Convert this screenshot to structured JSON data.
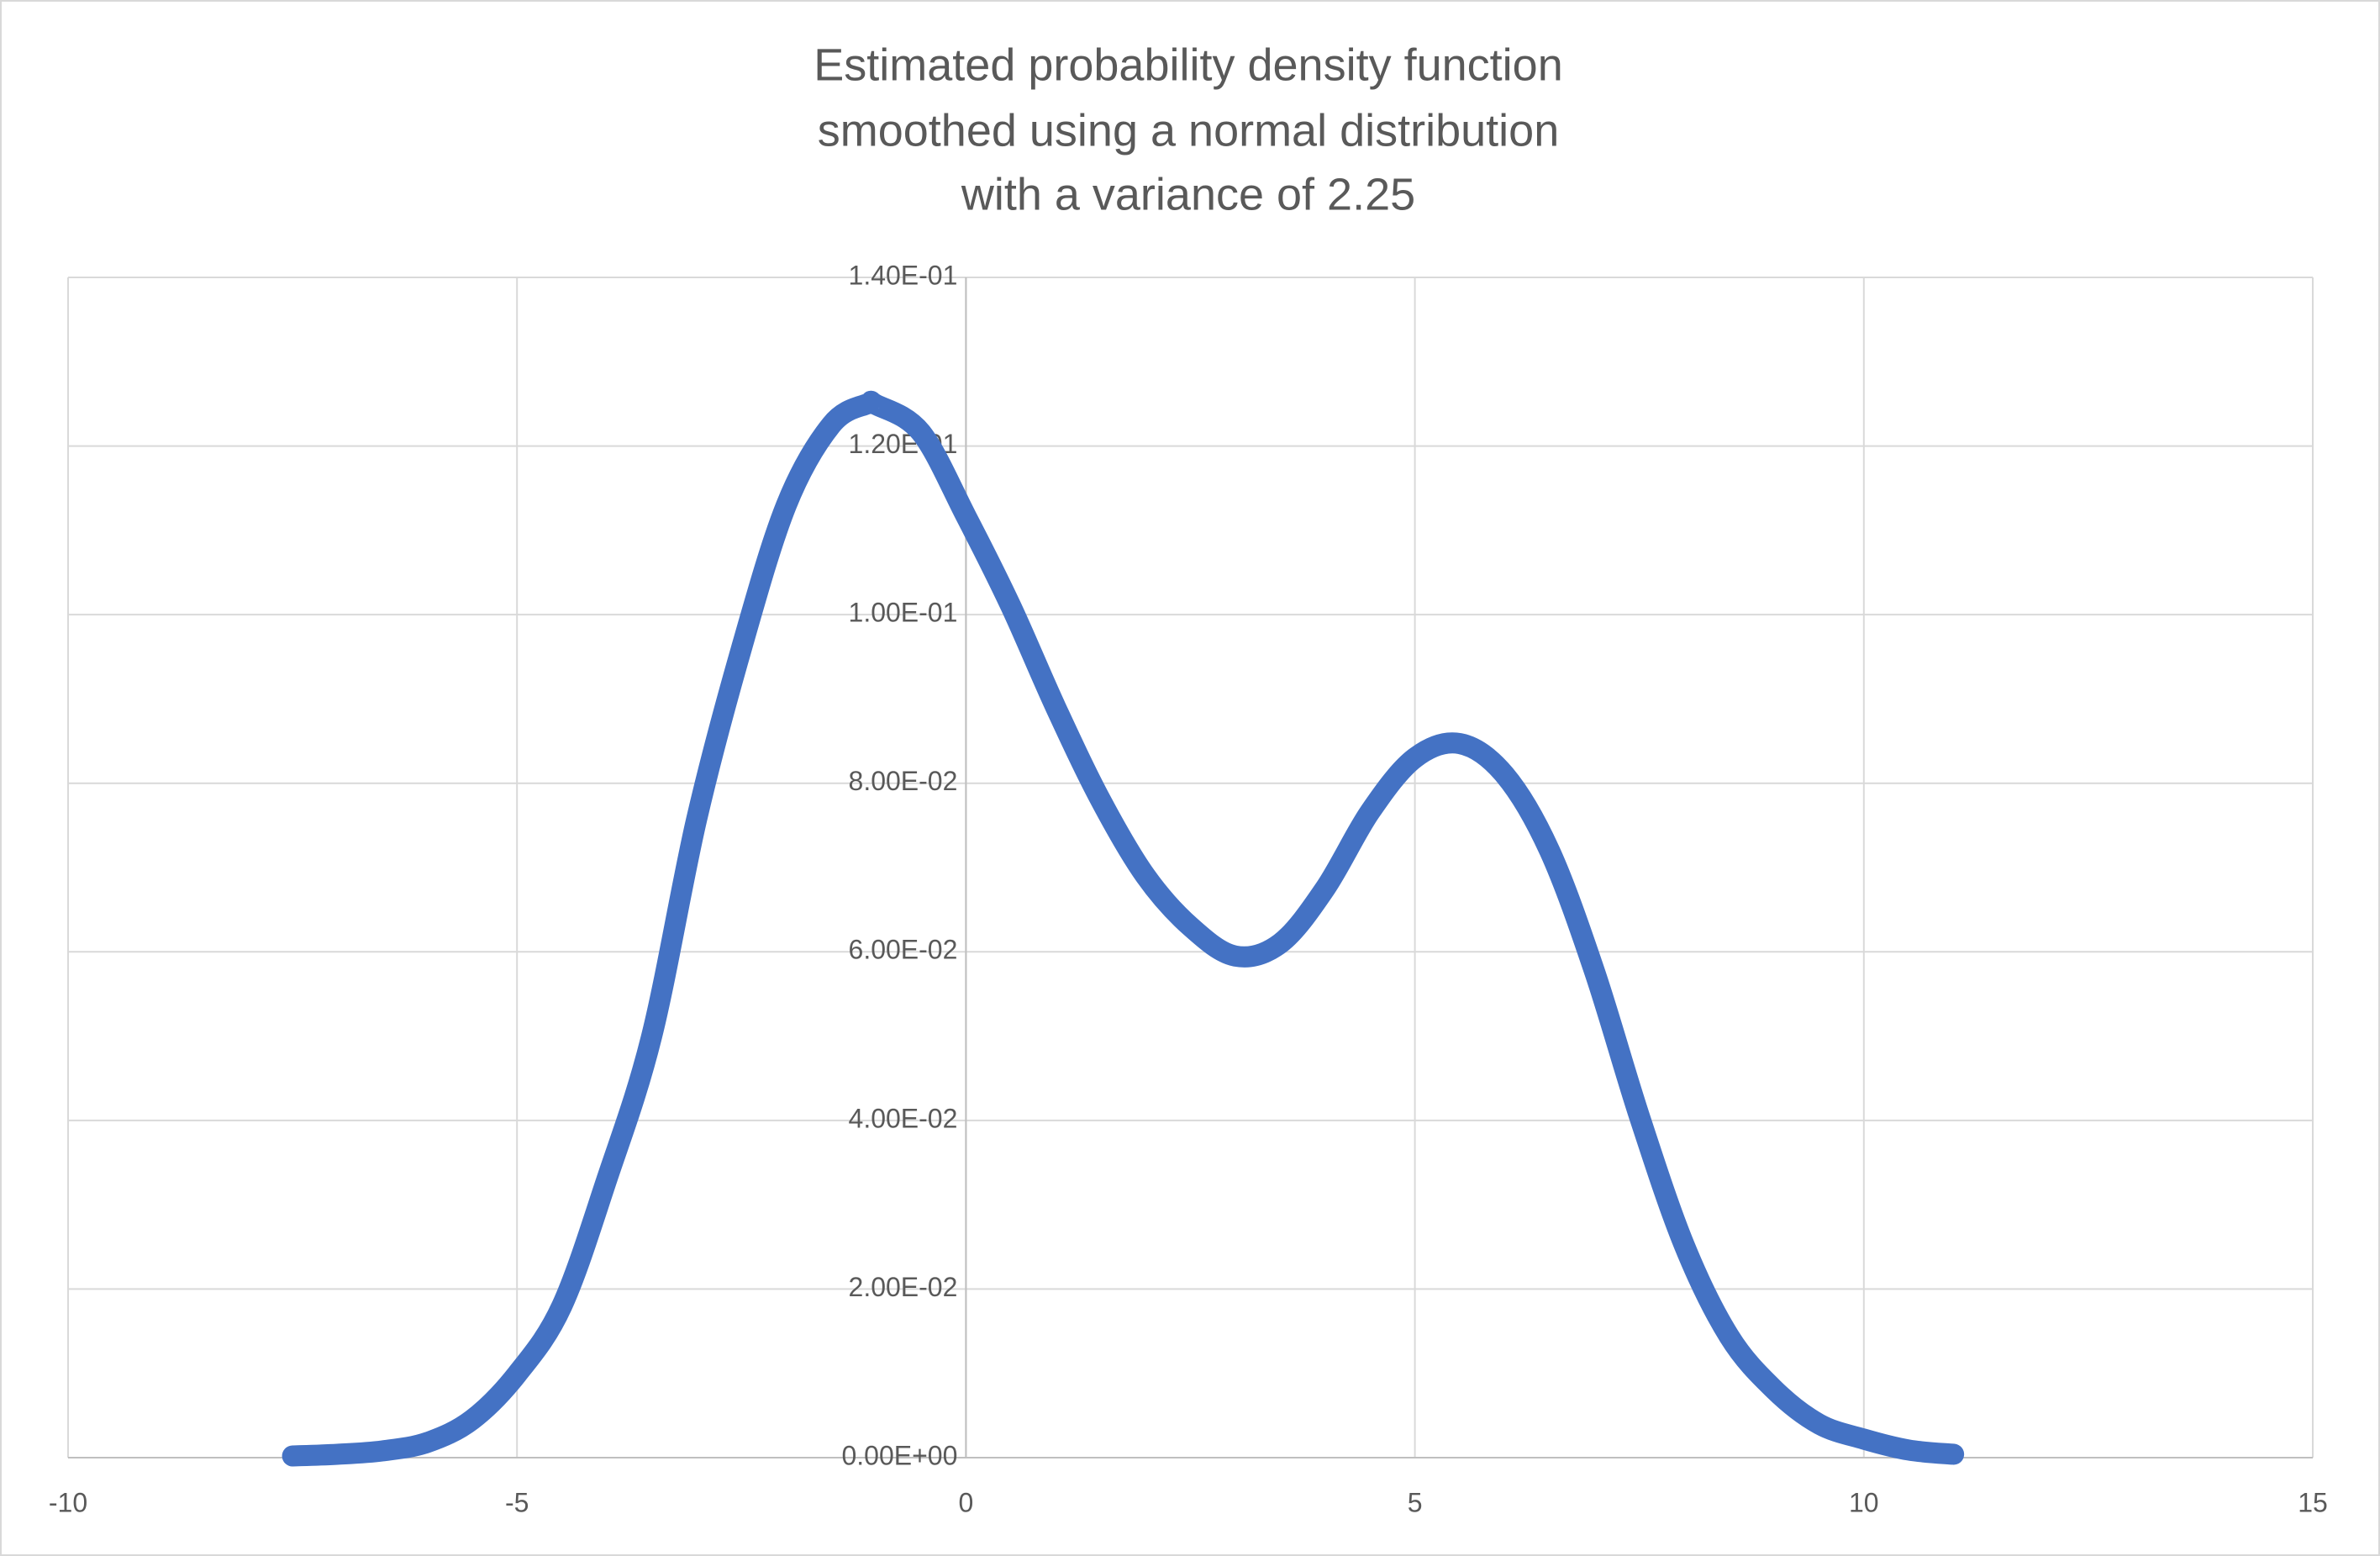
{
  "chart_data": {
    "type": "scatter-line",
    "title": [
      "Estimated probability density function",
      "smoothed using a normal distribution",
      "with a variance of 2.25"
    ],
    "x": [
      -7.5,
      -7,
      -6.5,
      -6,
      -5.5,
      -5,
      -4.5,
      -4,
      -3.5,
      -3,
      -2.5,
      -2,
      -1.5,
      -1.1,
      -1,
      -0.5,
      0,
      0.5,
      1,
      1.5,
      2,
      2.5,
      3,
      3.5,
      4,
      4.5,
      5,
      5.5,
      6,
      6.5,
      7,
      7.5,
      8,
      8.5,
      9,
      9.5,
      10,
      10.5,
      11
    ],
    "series": [
      {
        "color": "#4472c4",
        "values": [
          0.0002,
          0.0004,
          0.0008,
          0.0018,
          0.0045,
          0.0099,
          0.018,
          0.033,
          0.05,
          0.0757,
          0.096,
          0.113,
          0.1225,
          0.125,
          0.1249,
          0.1216,
          0.1117,
          0.101,
          0.089,
          0.078,
          0.069,
          0.063,
          0.0595,
          0.061,
          0.0675,
          0.0766,
          0.083,
          0.0847,
          0.081,
          0.072,
          0.0577,
          0.0405,
          0.0252,
          0.0144,
          0.0081,
          0.004,
          0.0022,
          0.0009,
          0.0004
        ]
      }
    ],
    "xlim": [
      -10,
      15
    ],
    "xticks": [
      -10,
      -5,
      0,
      5,
      10,
      15
    ],
    "ylim": [
      0,
      0.14
    ],
    "yticks": [
      {
        "value": 0,
        "label": "0.00E+00"
      },
      {
        "value": 0.02,
        "label": "2.00E-02"
      },
      {
        "value": 0.04,
        "label": "4.00E-02"
      },
      {
        "value": 0.06,
        "label": "6.00E-02"
      },
      {
        "value": 0.08,
        "label": "8.00E-02"
      },
      {
        "value": 0.1,
        "label": "1.00E-01"
      },
      {
        "value": 0.12,
        "label": "1.20E-01"
      },
      {
        "value": 0.14,
        "label": "1.40E-01"
      }
    ],
    "grid": true
  }
}
